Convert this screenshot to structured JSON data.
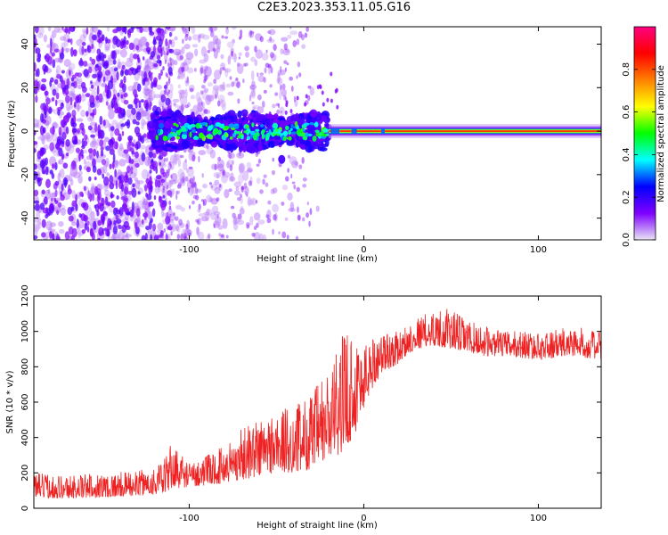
{
  "title": "C2E3.2023.353.11.05.G16",
  "chart_data": [
    {
      "type": "heatmap",
      "xlabel": "Height of straight line (km)",
      "ylabel": "Frequency (Hz)",
      "xlim": [
        -189,
        136
      ],
      "ylim": [
        -50,
        48
      ],
      "xticks": [
        -100,
        0,
        100
      ],
      "yticks": [
        -40,
        -20,
        0,
        20,
        40
      ],
      "grid": false,
      "colorbar": {
        "label": "Normalized spectral amplitude",
        "range": [
          0.0,
          1.0
        ],
        "ticks": [
          0.0,
          0.2,
          0.4,
          0.6,
          0.8
        ],
        "tick_labels": [
          "0.0",
          "0.2",
          "0.4",
          "0.6",
          "0.8"
        ],
        "colormap": [
          "#e8e4f4",
          "#7f00ff",
          "#0000ff",
          "#00ffff",
          "#00ff00",
          "#ffff00",
          "#ff8000",
          "#ff0000",
          "#ff0080"
        ]
      },
      "features": {
        "noise_region_x": [
          -189,
          -120
        ],
        "signal_band_start_x": -122,
        "signal_band_center_hz": 0,
        "narrow_tone_start_x": -20
      }
    },
    {
      "type": "line",
      "xlabel": "Height of straight line (km)",
      "ylabel": "SNR (10 * v/v)",
      "xlim": [
        -189,
        136
      ],
      "ylim": [
        0,
        1200
      ],
      "xticks": [
        -100,
        0,
        100
      ],
      "yticks": [
        0,
        200,
        400,
        600,
        800,
        1000,
        1200
      ],
      "grid": false,
      "series": [
        {
          "color": "#ee2222",
          "envelope": {
            "x": [
              -189,
              -170,
              -150,
              -130,
              -115,
              -110,
              -100,
              -90,
              -80,
              -70,
              -60,
              -50,
              -40,
              -30,
              -20,
              -15,
              -10,
              -5,
              0,
              5,
              10,
              20,
              25,
              30,
              40,
              50,
              60,
              70,
              80,
              90,
              100,
              110,
              120,
              136
            ],
            "low": [
              60,
              55,
              60,
              70,
              80,
              110,
              120,
              130,
              140,
              160,
              180,
              200,
              200,
              220,
              260,
              300,
              340,
              420,
              560,
              680,
              760,
              820,
              870,
              900,
              920,
              900,
              880,
              860,
              860,
              850,
              840,
              850,
              860,
              840
            ],
            "high": [
              200,
              190,
              200,
              210,
              260,
              380,
              260,
              300,
              360,
              460,
              520,
              560,
              580,
              660,
              800,
              900,
              1050,
              1000,
              950,
              980,
              1000,
              1000,
              1040,
              1080,
              1120,
              1130,
              1060,
              1030,
              1000,
              1010,
              990,
              1010,
              1030,
              1000
            ]
          }
        }
      ]
    }
  ]
}
